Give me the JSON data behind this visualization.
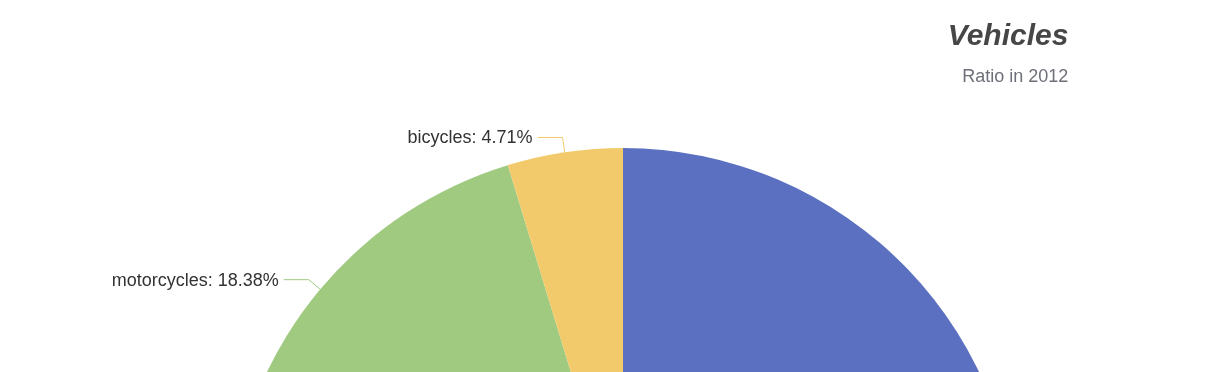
{
  "chart_data": {
    "type": "pie",
    "title": "Vehicles",
    "subtitle": "Ratio in 2012",
    "categories": [
      null,
      "motorcycles",
      "bicycles"
    ],
    "values": [
      76.91,
      18.38,
      4.71
    ],
    "colors": [
      "#5b70c0",
      "#9fca80",
      "#f2ca6b"
    ],
    "value_labels": [
      null,
      "18.38%",
      "4.71%"
    ],
    "legend": false
  }
}
